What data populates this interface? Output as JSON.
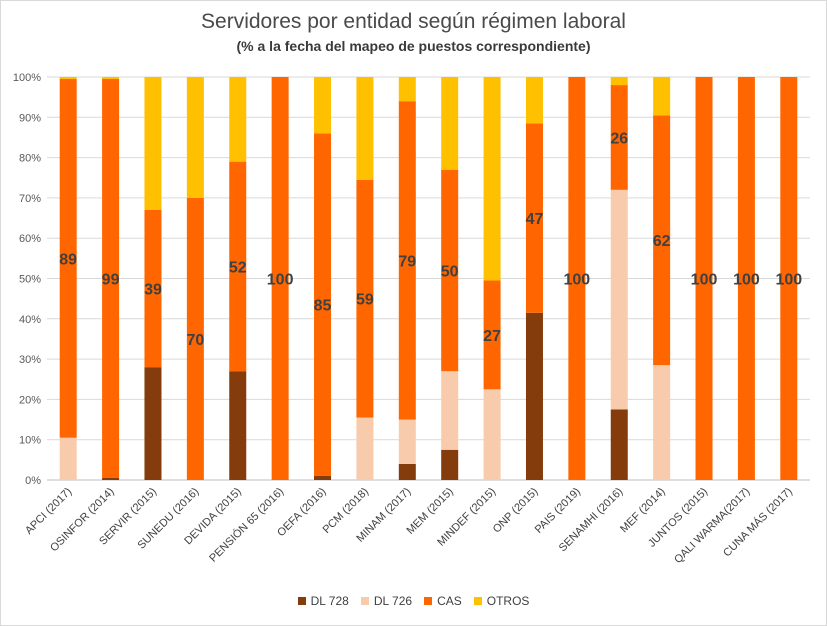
{
  "chart_data": {
    "type": "bar",
    "stacked": true,
    "title": "Servidores por entidad según régimen laboral",
    "subtitle": "(% a la fecha del mapeo de puestos correspondiente)",
    "ylim": [
      0,
      100
    ],
    "yticks": [
      "0%",
      "10%",
      "20%",
      "30%",
      "40%",
      "50%",
      "60%",
      "70%",
      "80%",
      "90%",
      "100%"
    ],
    "grid": true,
    "legend_position": "bottom",
    "categories": [
      "APCI (2017)",
      "OSINFOR (2014)",
      "SERVIR (2015)",
      "SUNEDU (2016)",
      "DEVIDA (2015)",
      "PENSIÓN 65 (2016)",
      "OEFA (2016)",
      "PCM (2018)",
      "MINAM (2017)",
      "MEM (2015)",
      "MINDEF (2015)",
      "ONP (2015)",
      "PAIS (2019)",
      "SENAMHI (2016)",
      "MEF (2014)",
      "JUNTOS (2015)",
      "QALI WARMA(2017)",
      "CUNA MÁS (2017)"
    ],
    "series": [
      {
        "name": "DL 728",
        "color": "#843c0c",
        "values": [
          0,
          0.5,
          28,
          0,
          27,
          0,
          1,
          0,
          4,
          7.5,
          0,
          41.5,
          0,
          17.5,
          0,
          0,
          0,
          0
        ]
      },
      {
        "name": "DL 726",
        "color": "#f8cbad",
        "values": [
          10.5,
          0,
          0,
          0,
          0,
          0,
          0,
          15.5,
          11,
          19.5,
          22.5,
          0,
          0,
          54.5,
          28.5,
          0,
          0,
          0
        ]
      },
      {
        "name": "CAS",
        "color": "#ff6600",
        "values": [
          89,
          99,
          39,
          70,
          52,
          100,
          85,
          59,
          79,
          50,
          27,
          47,
          100,
          26,
          62,
          100,
          100,
          100
        ]
      },
      {
        "name": "OTROS",
        "color": "#ffc000",
        "values": [
          0.5,
          0.5,
          33,
          30,
          21,
          0,
          14,
          25.5,
          6,
          23,
          50.5,
          11.5,
          0,
          2,
          9.5,
          0,
          0,
          0
        ]
      }
    ],
    "data_labels": [
      "89",
      "99",
      "39",
      "70",
      "52",
      "100",
      "85",
      "59",
      "79",
      "50",
      "27",
      "47",
      "100",
      "26",
      "62",
      "100",
      "100",
      "100"
    ]
  }
}
